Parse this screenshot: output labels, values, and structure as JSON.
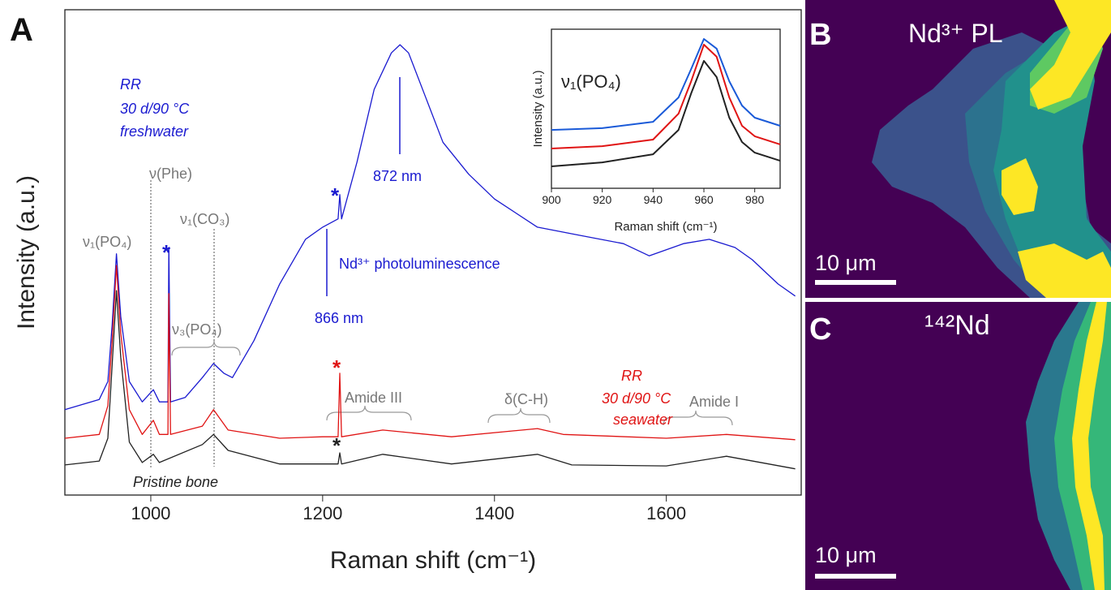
{
  "chart_data": [
    {
      "type": "line",
      "panel_label": "A",
      "xlabel": "Raman shift (cm⁻¹)",
      "ylabel": "Intensity (a.u.)",
      "xlim": [
        900,
        1757
      ],
      "ylim": [
        0,
        100
      ],
      "xticks": [
        1000,
        1200,
        1400,
        1600
      ],
      "series": [
        {
          "color": "#1a1ad0",
          "x": [
            900,
            940,
            950,
            955,
            960,
            965,
            975,
            990,
            1003,
            1010,
            1020,
            1021,
            1023,
            1040,
            1060,
            1073,
            1085,
            1095,
            1120,
            1150,
            1180,
            1200,
            1218,
            1220,
            1222,
            1240,
            1260,
            1280,
            1290,
            1300,
            1320,
            1340,
            1370,
            1400,
            1450,
            1500,
            1550,
            1580,
            1620,
            1650,
            1680,
            1700,
            1730,
            1750
          ],
          "values": [
            17.6,
            19.7,
            23.4,
            35.1,
            49.7,
            36.8,
            23.4,
            19.2,
            21.7,
            19.2,
            19.2,
            51.0,
            19.2,
            20.1,
            24.2,
            27.1,
            25.1,
            24.2,
            31.8,
            43.5,
            52.7,
            55.2,
            56.9,
            61.9,
            56.9,
            68.6,
            83.6,
            91.1,
            92.8,
            91.1,
            81.9,
            72.7,
            66.1,
            61.0,
            55.2,
            53.5,
            51.8,
            49.3,
            51.8,
            52.7,
            51.0,
            48.5,
            43.5,
            41.0
          ]
        },
        {
          "color": "#e01414",
          "x": [
            900,
            940,
            950,
            955,
            960,
            965,
            975,
            990,
            1003,
            1010,
            1020,
            1021,
            1023,
            1060,
            1073,
            1090,
            1150,
            1200,
            1218,
            1220,
            1222,
            1270,
            1350,
            1450,
            1480,
            1600,
            1670,
            1750
          ],
          "values": [
            11.7,
            12.5,
            18.4,
            31.8,
            47.3,
            33.4,
            17.6,
            12.5,
            15.4,
            12.5,
            12.5,
            41.5,
            12.5,
            14.2,
            17.6,
            13.4,
            11.7,
            12.0,
            12.0,
            25.1,
            12.0,
            13.4,
            12.0,
            13.7,
            12.5,
            11.7,
            12.5,
            11.4
          ]
        },
        {
          "color": "#222222",
          "x": [
            900,
            940,
            950,
            955,
            960,
            965,
            975,
            990,
            1003,
            1010,
            1060,
            1073,
            1090,
            1150,
            1218,
            1220,
            1222,
            1270,
            1350,
            1450,
            1490,
            1600,
            1670,
            1750
          ],
          "values": [
            6.2,
            7.0,
            11.7,
            26.8,
            42.1,
            28.4,
            10.9,
            6.7,
            8.4,
            6.7,
            10.4,
            12.5,
            9.2,
            6.4,
            6.4,
            8.7,
            6.4,
            8.4,
            6.4,
            8.4,
            6.2,
            6.0,
            8.0,
            5.4
          ]
        }
      ],
      "annotations": [
        {
          "text": "RR",
          "color": "#1a1ad0",
          "italic": true
        },
        {
          "text": "30 d/90 °C",
          "color": "#1a1ad0",
          "italic": true
        },
        {
          "text": "freshwater",
          "color": "#1a1ad0",
          "italic": true
        },
        {
          "text": "ν(Phe)",
          "color": "#777777"
        },
        {
          "text": "ν₁(CO₃)",
          "color": "#777777"
        },
        {
          "text": "ν₁(PO₄)",
          "color": "#777777"
        },
        {
          "text": "ν₃(PO₄)",
          "color": "#777777"
        },
        {
          "text": "Nd³⁺ photoluminescence",
          "color": "#1a1ad0"
        },
        {
          "text": "866 nm",
          "color": "#1a1ad0"
        },
        {
          "text": "872 nm",
          "color": "#1a1ad0"
        },
        {
          "text": "Amide III",
          "color": "#777777"
        },
        {
          "text": "δ(C-H)",
          "color": "#777777"
        },
        {
          "text": "Amide I",
          "color": "#777777"
        },
        {
          "text": "RR",
          "color": "#e01414",
          "italic": true
        },
        {
          "text": "30 d/90 °C",
          "color": "#e01414",
          "italic": true
        },
        {
          "text": "seawater",
          "color": "#e01414",
          "italic": true
        },
        {
          "text": "Pristine bone",
          "color": "#222222",
          "italic": true
        },
        {
          "text": "*",
          "color": "#1a1ad0"
        },
        {
          "text": "*",
          "color": "#1a1ad0"
        },
        {
          "text": "*",
          "color": "#e01414"
        },
        {
          "text": "*",
          "color": "#222222"
        }
      ]
    },
    {
      "type": "line",
      "title": "ν₁(PO₄)",
      "xlabel": "Raman shift (cm⁻¹)",
      "ylabel": "Intensity (a.u.)",
      "xlim": [
        900,
        990
      ],
      "ylim": [
        0,
        100
      ],
      "xticks": [
        900,
        920,
        940,
        960,
        980
      ],
      "series": [
        {
          "color": "#1a5ad8",
          "x": [
            900,
            920,
            940,
            950,
            955,
            960,
            965,
            970,
            975,
            980,
            990
          ],
          "values": [
            36.7,
            37.8,
            41.8,
            57.1,
            75.0,
            93.9,
            87.8,
            67.3,
            52.0,
            44.4,
            39.3
          ]
        },
        {
          "color": "#e01414",
          "x": [
            900,
            920,
            940,
            950,
            955,
            960,
            965,
            970,
            975,
            980,
            990
          ],
          "values": [
            25.0,
            26.5,
            30.6,
            46.9,
            67.3,
            90.3,
            82.7,
            57.1,
            39.3,
            32.7,
            27.6
          ]
        },
        {
          "color": "#222222",
          "x": [
            900,
            920,
            940,
            950,
            955,
            960,
            965,
            970,
            975,
            980,
            990
          ],
          "values": [
            13.8,
            16.3,
            21.4,
            36.7,
            59.7,
            80.1,
            69.9,
            44.4,
            29.1,
            22.4,
            17.3
          ]
        }
      ]
    }
  ],
  "panels": {
    "b": {
      "label": "B",
      "title": "Nd³⁺ PL",
      "scale_bar": "10 μm"
    },
    "c": {
      "label": "C",
      "title": "¹⁴²Nd",
      "scale_bar": "10 μm"
    }
  }
}
